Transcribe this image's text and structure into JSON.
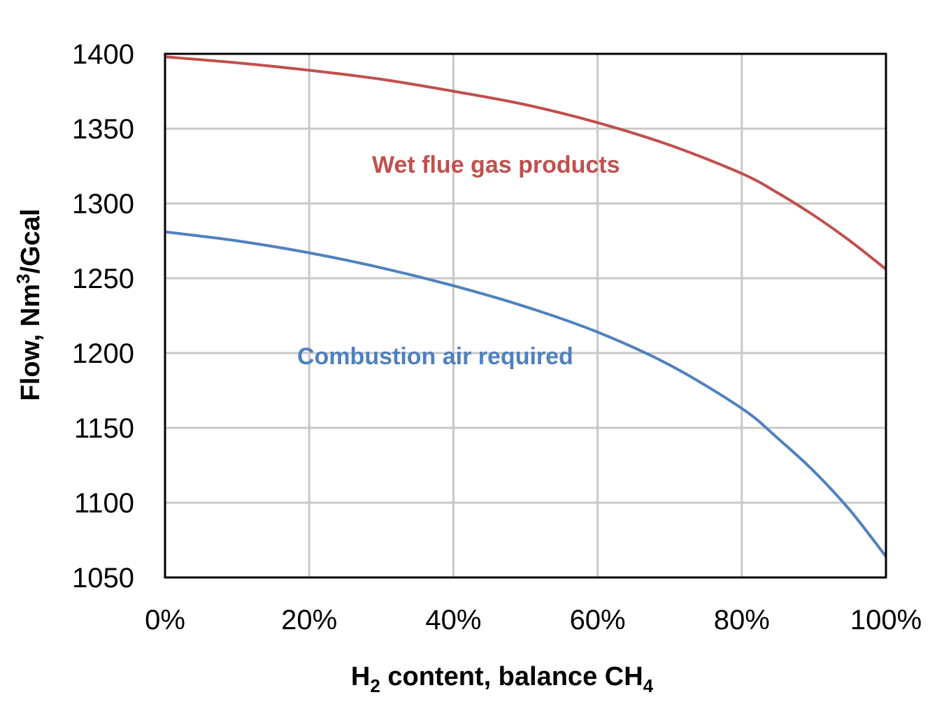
{
  "chart_data": {
    "type": "line",
    "xlabel": {
      "prefix": "H",
      "sub1": "2",
      "middle": " content, balance CH",
      "sub2": "4"
    },
    "ylabel": {
      "prefix": "Flow, Nm",
      "sup": "3",
      "suffix": "/Gcal"
    },
    "xlim": [
      0,
      100
    ],
    "ylim": [
      1050,
      1400
    ],
    "x_ticks": [
      0,
      20,
      40,
      60,
      80,
      100
    ],
    "x_tick_labels": [
      "0%",
      "20%",
      "40%",
      "60%",
      "80%",
      "100%"
    ],
    "y_ticks": [
      1050,
      1100,
      1150,
      1200,
      1250,
      1300,
      1350,
      1400
    ],
    "y_tick_labels": [
      "1050",
      "1100",
      "1150",
      "1200",
      "1250",
      "1300",
      "1350",
      "1400"
    ],
    "grid": true,
    "series": [
      {
        "name": "Wet flue gas products",
        "color": "#C0504D",
        "x": [
          0,
          10,
          20,
          30,
          40,
          50,
          60,
          70,
          80,
          85,
          90,
          95,
          100
        ],
        "y": [
          1398,
          1394,
          1389,
          1383,
          1375,
          1366,
          1354,
          1339,
          1320,
          1307,
          1292,
          1275,
          1256
        ]
      },
      {
        "name": "Combustion air required",
        "color": "#4F81BD",
        "x": [
          0,
          10,
          20,
          30,
          40,
          50,
          60,
          70,
          80,
          85,
          90,
          95,
          100
        ],
        "y": [
          1281,
          1275,
          1267,
          1257,
          1245,
          1231,
          1214,
          1192,
          1163,
          1143,
          1121,
          1095,
          1064
        ]
      }
    ]
  }
}
